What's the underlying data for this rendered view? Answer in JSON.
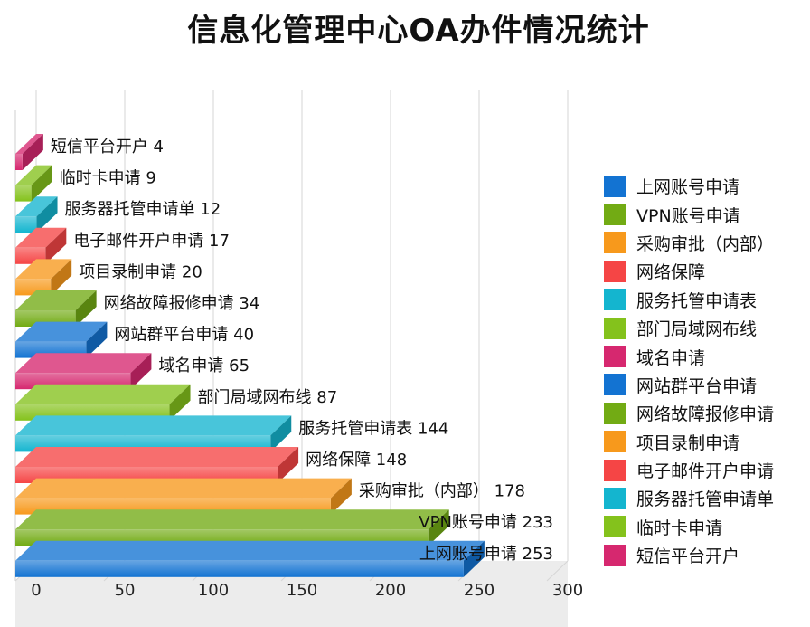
{
  "title": "信息化管理中心OA办件情况统计",
  "chart_data": {
    "type": "bar",
    "orientation": "horizontal",
    "title": "信息化管理中心OA办件情况统计",
    "categories": [
      "短信平台开户",
      "临时卡申请",
      "服务器托管申请单",
      "电子邮件开户申请",
      "项目录制申请",
      "网络故障报修申请",
      "网站群平台申请",
      "域名申请",
      "部门局域网布线",
      "服务托管申请表",
      "网络保障",
      "采购审批（内部）",
      "VPN账号申请",
      "上网账号申请"
    ],
    "values": [
      4,
      9,
      12,
      17,
      20,
      34,
      40,
      65,
      87,
      144,
      148,
      178,
      233,
      253
    ],
    "bar_labels": [
      "短信平台开户  4",
      "临时卡申请  9",
      "服务器托管申请单  12",
      "电子邮件开户申请  17",
      "项目录制申请  20",
      "网络故障报修申请  34",
      "网站群平台申请  40",
      "域名申请  65",
      "部门局域网布线  87",
      "服务托管申请表  144",
      "网络保障  148",
      "采购审批（内部）  178",
      "VPN账号申请  233",
      "上网账号申请  253"
    ],
    "colors": [
      "#d6286f",
      "#84c21c",
      "#14b5cf",
      "#f54545",
      "#f7991c",
      "#72ab14",
      "#1373d2",
      "#d6286f",
      "#84c21c",
      "#14b5cf",
      "#f54545",
      "#f7991c",
      "#72ab14",
      "#1373d2"
    ],
    "xlim": [
      0,
      300
    ],
    "xticks": [
      "0",
      "50",
      "100",
      "150",
      "200",
      "250",
      "300"
    ],
    "grid": true,
    "legend_position": "right",
    "legend": [
      {
        "label": "上网账号申请",
        "color": "#1373d2"
      },
      {
        "label": "VPN账号申请",
        "color": "#72ab14"
      },
      {
        "label": "采购审批（内部）",
        "color": "#f7991c"
      },
      {
        "label": "网络保障",
        "color": "#f54545"
      },
      {
        "label": "服务托管申请表",
        "color": "#14b5cf"
      },
      {
        "label": "部门局域网布线",
        "color": "#84c21c"
      },
      {
        "label": "域名申请",
        "color": "#d6286f"
      },
      {
        "label": "网站群平台申请",
        "color": "#1373d2"
      },
      {
        "label": "网络故障报修申请",
        "color": "#72ab14"
      },
      {
        "label": "项目录制申请",
        "color": "#f7991c"
      },
      {
        "label": "电子邮件开户申请",
        "color": "#f54545"
      },
      {
        "label": "服务器托管申请单",
        "color": "#14b5cf"
      },
      {
        "label": "临时卡申请",
        "color": "#84c21c"
      },
      {
        "label": "短信平台开户",
        "color": "#d6286f"
      }
    ]
  }
}
